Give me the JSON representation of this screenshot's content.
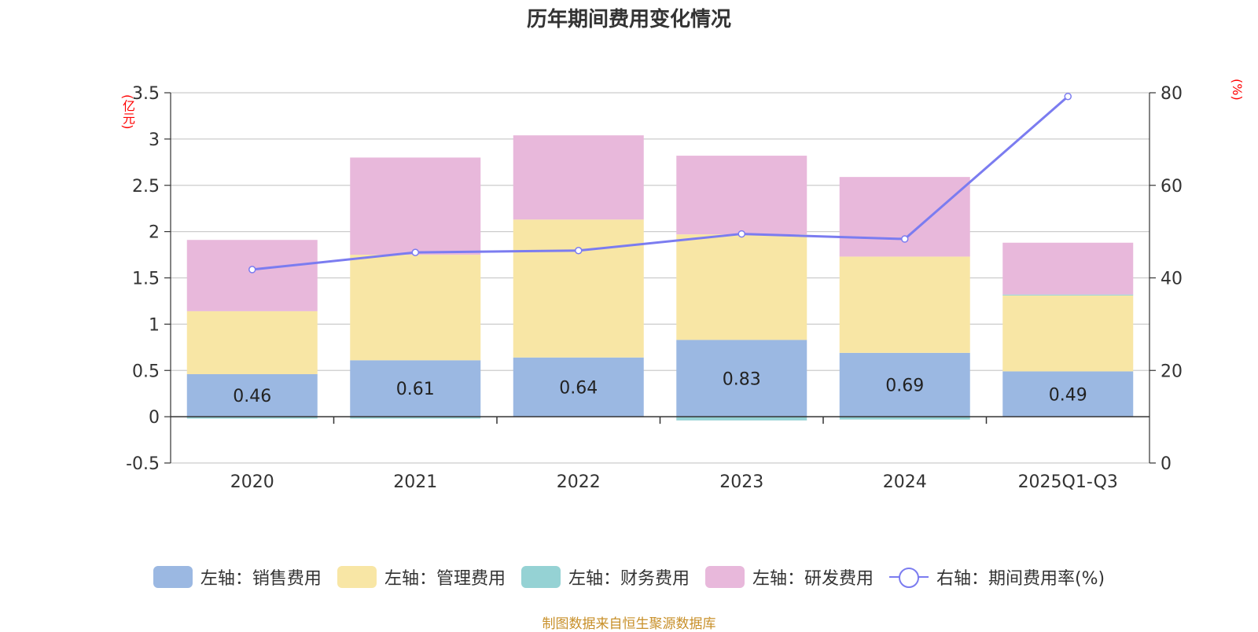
{
  "chart_data": {
    "type": "bar",
    "title": "历年期间费用变化情况",
    "left_unit": "(亿元)",
    "right_unit": "(%)",
    "categories": [
      "2020",
      "2021",
      "2022",
      "2023",
      "2024",
      "2025Q1-Q3"
    ],
    "left_axis": {
      "ylim": [
        -0.5,
        3.5
      ],
      "ticks": [
        "-0.5",
        "0",
        "0.5",
        "1",
        "1.5",
        "2",
        "2.5",
        "3",
        "3.5"
      ]
    },
    "right_axis": {
      "ylim": [
        0,
        80
      ],
      "ticks": [
        "0",
        "20",
        "40",
        "60",
        "80"
      ]
    },
    "series": [
      {
        "name": "左轴：销售费用",
        "type": "bar",
        "color": "#9bb8e2",
        "values": [
          0.46,
          0.61,
          0.64,
          0.83,
          0.69,
          0.49
        ],
        "labels": [
          "0.46",
          "0.61",
          "0.64",
          "0.83",
          "0.69",
          "0.49"
        ]
      },
      {
        "name": "左轴：管理费用",
        "type": "bar",
        "color": "#f8e6a5",
        "values": [
          0.68,
          1.14,
          1.49,
          1.14,
          1.04,
          0.82
        ]
      },
      {
        "name": "左轴：财务费用",
        "type": "bar",
        "color": "#95d2d4",
        "values": [
          -0.02,
          -0.02,
          0.0,
          -0.04,
          -0.03,
          0.01
        ]
      },
      {
        "name": "左轴：研发费用",
        "type": "bar",
        "color": "#e8b8db",
        "values": [
          0.77,
          1.05,
          0.91,
          0.85,
          0.86,
          0.56
        ]
      },
      {
        "name": "右轴：期间费用率(%)",
        "type": "line",
        "color": "#7b7cf0",
        "values": [
          41.8,
          45.5,
          45.9,
          49.5,
          48.4,
          79.2
        ]
      }
    ],
    "grid": true,
    "legend": "bottom"
  },
  "source": "制图数据来自恒生聚源数据库"
}
